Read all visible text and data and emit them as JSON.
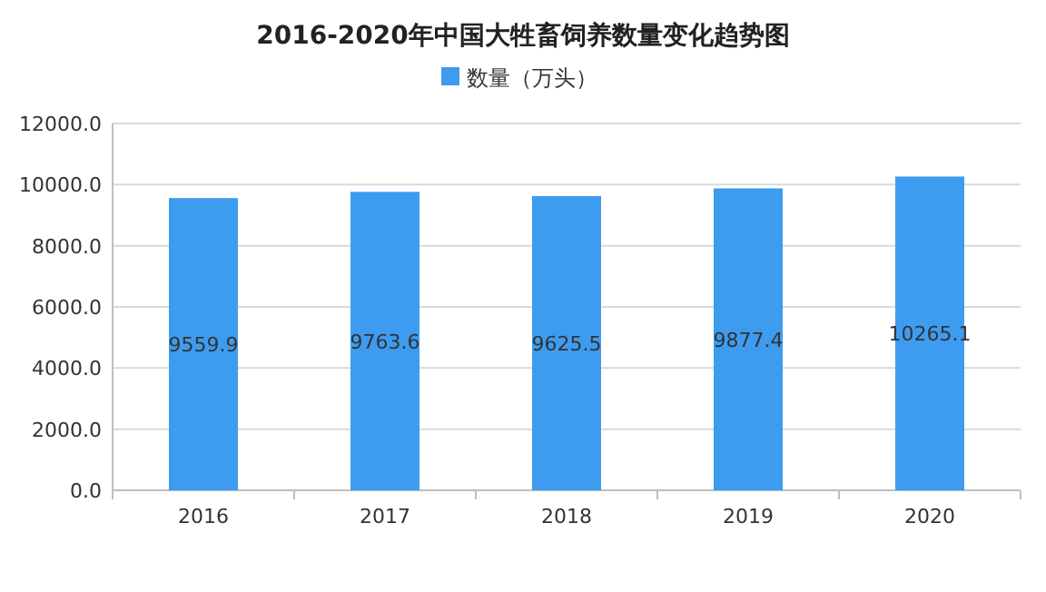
{
  "chart_data": {
    "type": "bar",
    "title": "2016-2020年中国大牲畜饲养数量变化趋势图",
    "categories": [
      "2016",
      "2017",
      "2018",
      "2019",
      "2020"
    ],
    "series": [
      {
        "name": "数量（万头）",
        "color": "#3d9cf0",
        "values": [
          9559.9,
          9763.6,
          9625.5,
          9877.4,
          10265.1
        ]
      }
    ],
    "ylim": [
      0,
      12000
    ],
    "yticks": [
      {
        "value": 0,
        "label": "0.0"
      },
      {
        "value": 2000,
        "label": "2000.0"
      },
      {
        "value": 4000,
        "label": "4000.0"
      },
      {
        "value": 6000,
        "label": "6000.0"
      },
      {
        "value": 8000,
        "label": "8000.0"
      },
      {
        "value": 10000,
        "label": "10000.0"
      },
      {
        "value": 12000,
        "label": "12000.0"
      }
    ],
    "grid": "y",
    "legend": "top",
    "data_labels": true
  }
}
